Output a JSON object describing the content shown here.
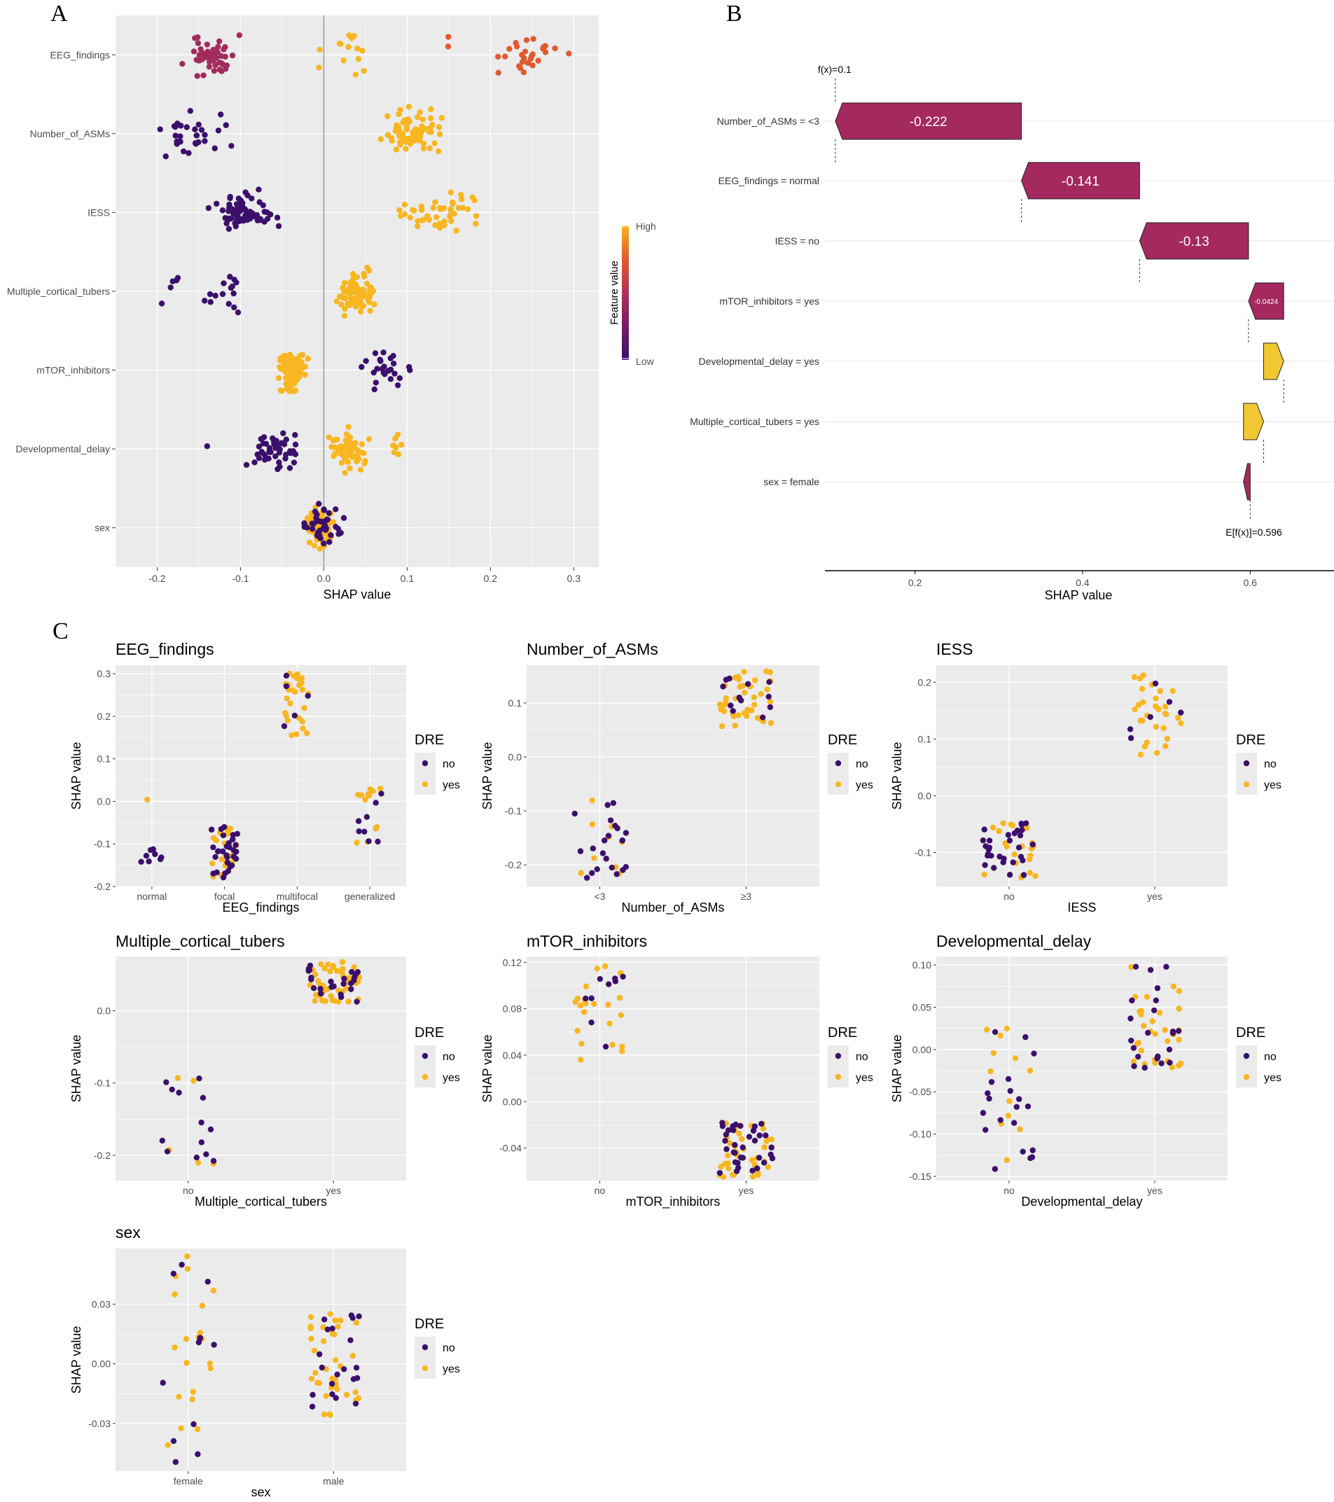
{
  "panel_labels": {
    "a": "A",
    "b": "B",
    "c": "C"
  },
  "colors": {
    "high": "#F8B620",
    "mid": "#E05A30",
    "midlow": "#A22B5E",
    "low": "#3B0F6B",
    "waterfall_neg": "#A3295F",
    "waterfall_pos": "#F2C832",
    "panel_bg": "#EBEBEB",
    "grid": "#FFFFFF"
  },
  "chart_data": [
    {
      "id": "A",
      "type": "scatter",
      "subtype": "shap-beeswarm",
      "title": "",
      "xlabel": "SHAP value",
      "ylabel": "",
      "xlim": [
        -0.25,
        0.33
      ],
      "xticks": [
        -0.2,
        -0.1,
        0.0,
        0.1,
        0.2,
        0.3
      ],
      "xtick_labels": [
        "-0.2",
        "-0.1",
        "0.0",
        "0.1",
        "0.2",
        "0.3"
      ],
      "features": [
        "EEG_findings",
        "Number_of_ASMs",
        "IESS",
        "Multiple_cortical_tubers",
        "mTOR_inhibitors",
        "Developmental_delay",
        "sex"
      ],
      "clusters": [
        {
          "feature": "EEG_findings",
          "center": -0.135,
          "spread": 0.055,
          "n": 50,
          "color": "midlow"
        },
        {
          "feature": "EEG_findings",
          "center": 0.025,
          "spread": 0.04,
          "n": 14,
          "color": "high"
        },
        {
          "feature": "EEG_findings",
          "center": 0.15,
          "spread": 0.002,
          "n": 2,
          "color": "mid"
        },
        {
          "feature": "EEG_findings",
          "center": 0.245,
          "spread": 0.055,
          "n": 28,
          "color": "mid"
        },
        {
          "feature": "Number_of_ASMs",
          "center": -0.16,
          "spread": 0.065,
          "n": 30,
          "color": "low"
        },
        {
          "feature": "Number_of_ASMs",
          "center": 0.105,
          "spread": 0.048,
          "n": 70,
          "color": "high"
        },
        {
          "feature": "IESS",
          "center": -0.095,
          "spread": 0.05,
          "n": 65,
          "color": "low"
        },
        {
          "feature": "IESS",
          "center": 0.14,
          "spread": 0.07,
          "n": 45,
          "color": "high"
        },
        {
          "feature": "Multiple_cortical_tubers",
          "center": -0.19,
          "spread": 0.035,
          "n": 5,
          "color": "low"
        },
        {
          "feature": "Multiple_cortical_tubers",
          "center": -0.115,
          "spread": 0.035,
          "n": 15,
          "color": "low"
        },
        {
          "feature": "Multiple_cortical_tubers",
          "center": 0.04,
          "spread": 0.03,
          "n": 90,
          "color": "high"
        },
        {
          "feature": "mTOR_inhibitors",
          "center": -0.04,
          "spread": 0.025,
          "n": 85,
          "color": "high"
        },
        {
          "feature": "mTOR_inhibitors",
          "center": 0.075,
          "spread": 0.045,
          "n": 25,
          "color": "low"
        },
        {
          "feature": "Developmental_delay",
          "center": -0.14,
          "spread": 0.002,
          "n": 1,
          "color": "low"
        },
        {
          "feature": "Developmental_delay",
          "center": -0.055,
          "spread": 0.045,
          "n": 45,
          "color": "low"
        },
        {
          "feature": "Developmental_delay",
          "center": 0.03,
          "spread": 0.03,
          "n": 55,
          "color": "high"
        },
        {
          "feature": "Developmental_delay",
          "center": 0.085,
          "spread": 0.017,
          "n": 8,
          "color": "high"
        },
        {
          "feature": "sex",
          "center": -0.005,
          "spread": 0.02,
          "n": 70,
          "color": "high"
        },
        {
          "feature": "sex",
          "center": 0.0,
          "spread": 0.035,
          "n": 40,
          "color": "low"
        }
      ],
      "colorbar": {
        "title": "Feature value",
        "high_label": "High",
        "low_label": "Low"
      }
    },
    {
      "id": "B",
      "type": "bar",
      "subtype": "shap-waterfall",
      "xlabel": "SHAP value",
      "xlim": [
        0.09,
        0.7
      ],
      "xticks": [
        0.2,
        0.4,
        0.6
      ],
      "xtick_labels": [
        "0.2",
        "0.4",
        "0.6"
      ],
      "fx_label": "f(x)=0.1",
      "fx": 0.105,
      "efx_label": "E[f(x)]=0.596",
      "efx": 0.596,
      "bars": [
        {
          "label": "Number_of_ASMs = <3",
          "start": 0.327,
          "end": 0.105,
          "value_label": "-0.222"
        },
        {
          "label": "EEG_findings = normal",
          "start": 0.468,
          "end": 0.327,
          "value_label": "-0.141"
        },
        {
          "label": "IESS = no",
          "start": 0.598,
          "end": 0.468,
          "value_label": "-0.13"
        },
        {
          "label": "mTOR_inhibitors = yes",
          "start": 0.64,
          "end": 0.598,
          "value_label": "-0.0424"
        },
        {
          "label": "Developmental_delay = yes",
          "start": 0.616,
          "end": 0.64,
          "value_label": ""
        },
        {
          "label": "Multiple_cortical_tubers = yes",
          "start": 0.592,
          "end": 0.616,
          "value_label": ""
        },
        {
          "label": "sex = female",
          "start": 0.6,
          "end": 0.592,
          "value_label": ""
        }
      ]
    },
    {
      "id": "C1",
      "type": "scatter",
      "subtype": "dependence",
      "title": "EEG_findings",
      "xlabel": "EEG_findings",
      "ylabel": "SHAP value",
      "categories": [
        "normal",
        "focal",
        "multifocal",
        "generalized"
      ],
      "ylim": [
        -0.2,
        0.32
      ],
      "yticks": [
        -0.2,
        -0.1,
        0.0,
        0.1,
        0.2,
        0.3
      ],
      "ytick_labels": [
        "-0.2",
        "-0.1",
        "0.0",
        "0.1",
        "0.2",
        "0.3"
      ],
      "clusters": [
        {
          "cat": 0,
          "lo": -0.145,
          "hi": -0.105,
          "no": 8,
          "yes": 0
        },
        {
          "cat": 0,
          "lo": 0.004,
          "hi": 0.006,
          "no": 0,
          "yes": 1
        },
        {
          "cat": 1,
          "lo": -0.18,
          "hi": -0.06,
          "no": 30,
          "yes": 22
        },
        {
          "cat": 2,
          "lo": 0.15,
          "hi": 0.31,
          "no": 5,
          "yes": 26
        },
        {
          "cat": 3,
          "lo": -0.1,
          "hi": 0.035,
          "no": 8,
          "yes": 12
        }
      ],
      "legend": {
        "title": "DRE",
        "no": "no",
        "yes": "yes"
      }
    },
    {
      "id": "C2",
      "type": "scatter",
      "subtype": "dependence",
      "title": "Number_of_ASMs",
      "xlabel": "Number_of_ASMs",
      "ylabel": "SHAP value",
      "categories": [
        "<3",
        "≥3"
      ],
      "ylim": [
        -0.24,
        0.17
      ],
      "yticks": [
        -0.2,
        -0.1,
        0.0,
        0.1
      ],
      "ytick_labels": [
        "-0.2",
        "-0.1",
        "0.0",
        "0.1"
      ],
      "clusters": [
        {
          "cat": 0,
          "lo": -0.225,
          "hi": -0.07,
          "no": 22,
          "yes": 10
        },
        {
          "cat": 1,
          "lo": 0.055,
          "hi": 0.16,
          "no": 12,
          "yes": 42
        }
      ],
      "legend": {
        "title": "DRE",
        "no": "no",
        "yes": "yes"
      }
    },
    {
      "id": "C3",
      "type": "scatter",
      "subtype": "dependence",
      "title": "IESS",
      "xlabel": "IESS",
      "ylabel": "SHAP value",
      "categories": [
        "no",
        "yes"
      ],
      "ylim": [
        -0.16,
        0.23
      ],
      "yticks": [
        -0.1,
        0.0,
        0.1,
        0.2
      ],
      "ytick_labels": [
        "-0.1",
        "0.0",
        "0.1",
        "0.2"
      ],
      "clusters": [
        {
          "cat": 0,
          "lo": -0.145,
          "hi": -0.045,
          "no": 30,
          "yes": 22
        },
        {
          "cat": 1,
          "lo": 0.07,
          "hi": 0.215,
          "no": 6,
          "yes": 30
        }
      ],
      "legend": {
        "title": "DRE",
        "no": "no",
        "yes": "yes"
      }
    },
    {
      "id": "C4",
      "type": "scatter",
      "subtype": "dependence",
      "title": "Multiple_cortical_tubers",
      "xlabel": "Multiple_cortical_tubers",
      "ylabel": "SHAP value",
      "categories": [
        "no",
        "yes"
      ],
      "ylim": [
        -0.235,
        0.075
      ],
      "yticks": [
        -0.2,
        -0.1,
        0.0
      ],
      "ytick_labels": [
        "-0.2",
        "-0.1",
        "0.0"
      ],
      "clusters": [
        {
          "cat": 0,
          "lo": -0.215,
          "hi": -0.08,
          "no": 13,
          "yes": 5
        },
        {
          "cat": 1,
          "lo": 0.012,
          "hi": 0.068,
          "no": 25,
          "yes": 45
        }
      ],
      "legend": {
        "title": "DRE",
        "no": "no",
        "yes": "yes"
      }
    },
    {
      "id": "C5",
      "type": "scatter",
      "subtype": "dependence",
      "title": "mTOR_inhibitors",
      "xlabel": "mTOR_inhibitors",
      "ylabel": "SHAP value",
      "categories": [
        "no",
        "yes"
      ],
      "ylim": [
        -0.068,
        0.125
      ],
      "yticks": [
        -0.04,
        0.0,
        0.04,
        0.08,
        0.12
      ],
      "ytick_labels": [
        "-0.04",
        "0.00",
        "0.04",
        "0.08",
        "0.12"
      ],
      "clusters": [
        {
          "cat": 0,
          "lo": 0.033,
          "hi": 0.12,
          "no": 9,
          "yes": 22
        },
        {
          "cat": 1,
          "lo": -0.065,
          "hi": -0.018,
          "no": 35,
          "yes": 40
        }
      ],
      "legend": {
        "title": "DRE",
        "no": "no",
        "yes": "yes"
      }
    },
    {
      "id": "C6",
      "type": "scatter",
      "subtype": "dependence",
      "title": "Developmental_delay",
      "xlabel": "Developmental_delay",
      "ylabel": "SHAP value",
      "categories": [
        "no",
        "yes"
      ],
      "ylim": [
        -0.155,
        0.11
      ],
      "yticks": [
        -0.15,
        -0.1,
        -0.05,
        0.0,
        0.05,
        0.1
      ],
      "ytick_labels": [
        "-0.15",
        "-0.10",
        "-0.05",
        "0.00",
        "0.05",
        "0.10"
      ],
      "clusters": [
        {
          "cat": 0,
          "lo": -0.142,
          "hi": 0.028,
          "no": 20,
          "yes": 12
        },
        {
          "cat": 1,
          "lo": -0.022,
          "hi": 0.1,
          "no": 22,
          "yes": 30
        }
      ],
      "legend": {
        "title": "DRE",
        "no": "no",
        "yes": "yes"
      }
    },
    {
      "id": "C7",
      "type": "scatter",
      "subtype": "dependence",
      "title": "sex",
      "xlabel": "sex",
      "ylabel": "SHAP value",
      "categories": [
        "female",
        "male"
      ],
      "ylim": [
        -0.054,
        0.058
      ],
      "yticks": [
        -0.03,
        0.0,
        0.03
      ],
      "ytick_labels": [
        "-0.03",
        "0.00",
        "0.03"
      ],
      "clusters": [
        {
          "cat": 0,
          "lo": -0.05,
          "hi": 0.055,
          "no": 12,
          "yes": 20
        },
        {
          "cat": 1,
          "lo": -0.026,
          "hi": 0.028,
          "no": 20,
          "yes": 35
        }
      ],
      "legend": {
        "title": "DRE",
        "no": "no",
        "yes": "yes"
      }
    }
  ]
}
